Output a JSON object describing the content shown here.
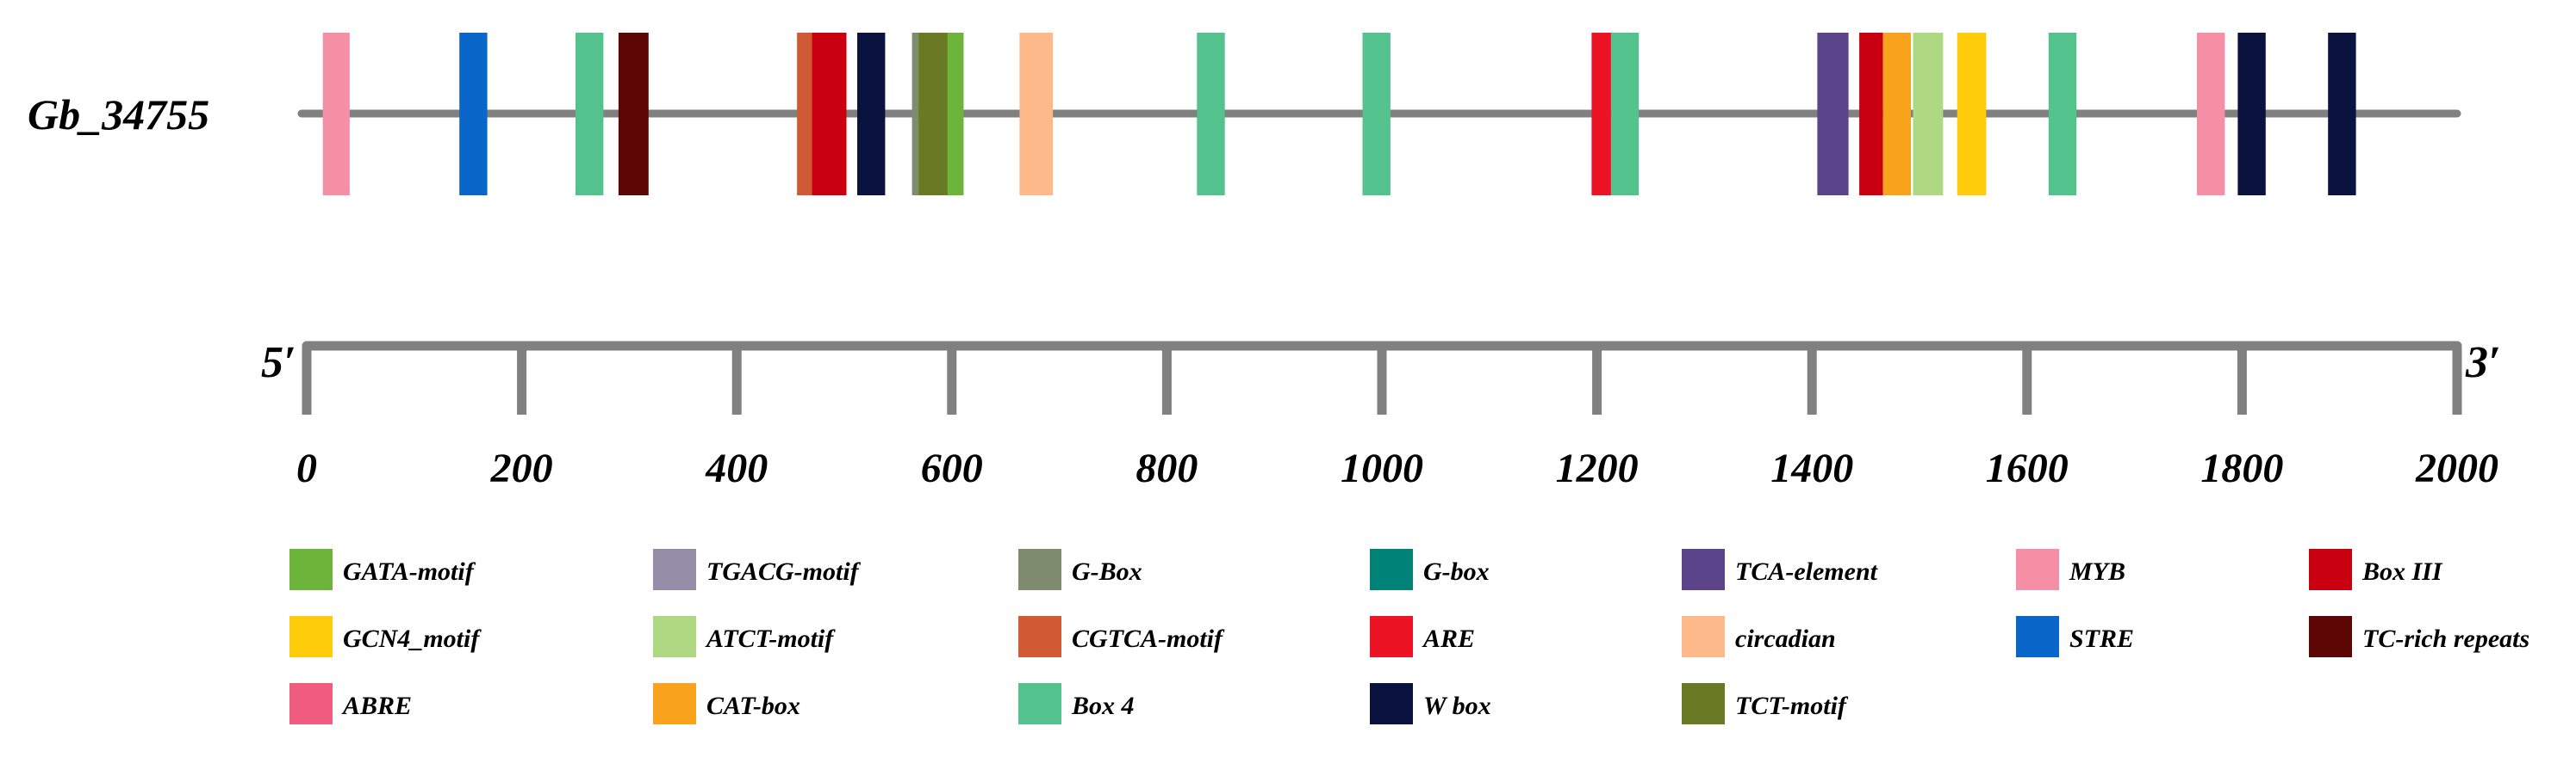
{
  "gene": {
    "name": "Gb_34755",
    "line_color": "#808080",
    "length": 2000
  },
  "axis": {
    "start_label": "5′",
    "end_label": "3′",
    "min": 0,
    "max": 2000,
    "ticks": [
      "0",
      "200",
      "400",
      "600",
      "800",
      "1000",
      "1200",
      "1400",
      "1600",
      "1800",
      "2000"
    ],
    "color": "#808080"
  },
  "elements": [
    {
      "name": "MYB",
      "color": "#F48FA6",
      "items": [
        {
          "start": 15,
          "end": 40
        },
        {
          "start": 1758,
          "end": 1784
        }
      ]
    },
    {
      "name": "STRE",
      "color": "#0A66C8",
      "items": [
        {
          "start": 142,
          "end": 168
        }
      ]
    },
    {
      "name": "Box 4",
      "color": "#54C28C",
      "items": [
        {
          "start": 250,
          "end": 276
        },
        {
          "start": 828,
          "end": 854
        },
        {
          "start": 982,
          "end": 1008
        },
        {
          "start": 1213,
          "end": 1239
        },
        {
          "start": 1620,
          "end": 1646
        }
      ]
    },
    {
      "name": "TC-rich repeats",
      "color": "#5C0606",
      "items": [
        {
          "start": 290,
          "end": 318
        }
      ]
    },
    {
      "name": "CGTCA-motif",
      "color": "#D15A35",
      "items": [
        {
          "start": 456,
          "end": 472
        }
      ]
    },
    {
      "name": "Box III",
      "color": "#C80010",
      "items": [
        {
          "start": 470,
          "end": 502
        },
        {
          "start": 1444,
          "end": 1466
        }
      ]
    },
    {
      "name": "W box",
      "color": "#0A1240",
      "items": [
        {
          "start": 512,
          "end": 538
        },
        {
          "start": 1796,
          "end": 1822
        },
        {
          "start": 1880,
          "end": 1906
        }
      ]
    },
    {
      "name": "G-Box",
      "color": "#7F8B6F",
      "items": [
        {
          "start": 563,
          "end": 569
        }
      ]
    },
    {
      "name": "TCT-motif",
      "color": "#6A7A24",
      "items": [
        {
          "start": 569,
          "end": 597
        }
      ]
    },
    {
      "name": "GATA-motif",
      "color": "#6CB53A",
      "items": [
        {
          "start": 596,
          "end": 611
        }
      ]
    },
    {
      "name": "circadian",
      "color": "#FDB98A",
      "items": [
        {
          "start": 663,
          "end": 694
        }
      ]
    },
    {
      "name": "ARE",
      "color": "#EC1325",
      "items": [
        {
          "start": 1195,
          "end": 1213
        }
      ]
    },
    {
      "name": "TCA-element",
      "color": "#5B4489",
      "items": [
        {
          "start": 1405,
          "end": 1434
        }
      ]
    },
    {
      "name": "CAT-box",
      "color": "#F8A21E",
      "items": [
        {
          "start": 1466,
          "end": 1492
        }
      ]
    },
    {
      "name": "ATCT-motif",
      "color": "#AED882",
      "items": [
        {
          "start": 1494,
          "end": 1522
        }
      ]
    },
    {
      "name": "GCN4_motif",
      "color": "#FECC0A",
      "items": [
        {
          "start": 1535,
          "end": 1562
        }
      ]
    }
  ],
  "legend": [
    [
      {
        "label": "GATA-motif",
        "color": "#6CB53A"
      },
      {
        "label": "TGACG-motif",
        "color": "#958EA9"
      },
      {
        "label": "G-Box",
        "color": "#7F8B6F"
      },
      {
        "label": "G-box",
        "color": "#008277"
      },
      {
        "label": "TCA-element",
        "color": "#5B4489"
      },
      {
        "label": "MYB",
        "color": "#F48FA6"
      },
      {
        "label": "Box III",
        "color": "#C80010"
      }
    ],
    [
      {
        "label": "GCN4_motif",
        "color": "#FECC0A"
      },
      {
        "label": "ATCT-motif",
        "color": "#AED882"
      },
      {
        "label": "CGTCA-motif",
        "color": "#D15A35"
      },
      {
        "label": "ARE",
        "color": "#EC1325"
      },
      {
        "label": "circadian",
        "color": "#FDB98A"
      },
      {
        "label": "STRE",
        "color": "#0A66C8"
      },
      {
        "label": "TC-rich repeats",
        "color": "#5C0606"
      }
    ],
    [
      {
        "label": "ABRE",
        "color": "#F25C7E"
      },
      {
        "label": "CAT-box",
        "color": "#F8A21E"
      },
      {
        "label": "Box 4",
        "color": "#54C28C"
      },
      {
        "label": "W box",
        "color": "#0A1240"
      },
      {
        "label": "TCT-motif",
        "color": "#6A7A24"
      }
    ]
  ]
}
